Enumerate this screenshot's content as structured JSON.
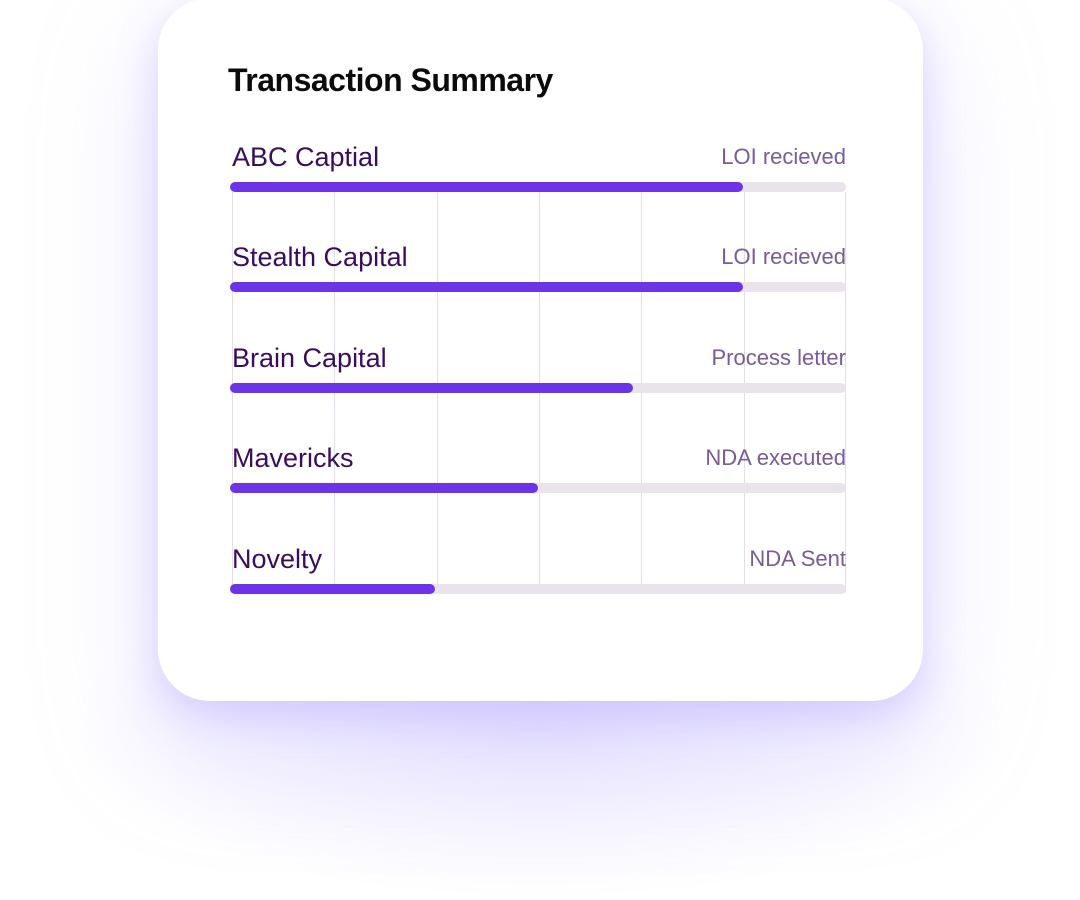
{
  "card": {
    "title": "Transaction Summary",
    "rows": [
      {
        "name": "ABC Captial",
        "status": "LOI recieved",
        "progress_pct": 83.3
      },
      {
        "name": "Stealth Capital",
        "status": "LOI recieved",
        "progress_pct": 83.3
      },
      {
        "name": "Brain Capital",
        "status": "Process letter",
        "progress_pct": 65.5
      },
      {
        "name": "Mavericks",
        "status": "NDA executed",
        "progress_pct": 50
      },
      {
        "name": "Novelty",
        "status": "NDA Sent",
        "progress_pct": 33.3
      }
    ]
  },
  "colors": {
    "accent": "#6c34e6",
    "track": "#e9e4ec",
    "label": "#3a0b5e",
    "status": "#7b5a98"
  }
}
